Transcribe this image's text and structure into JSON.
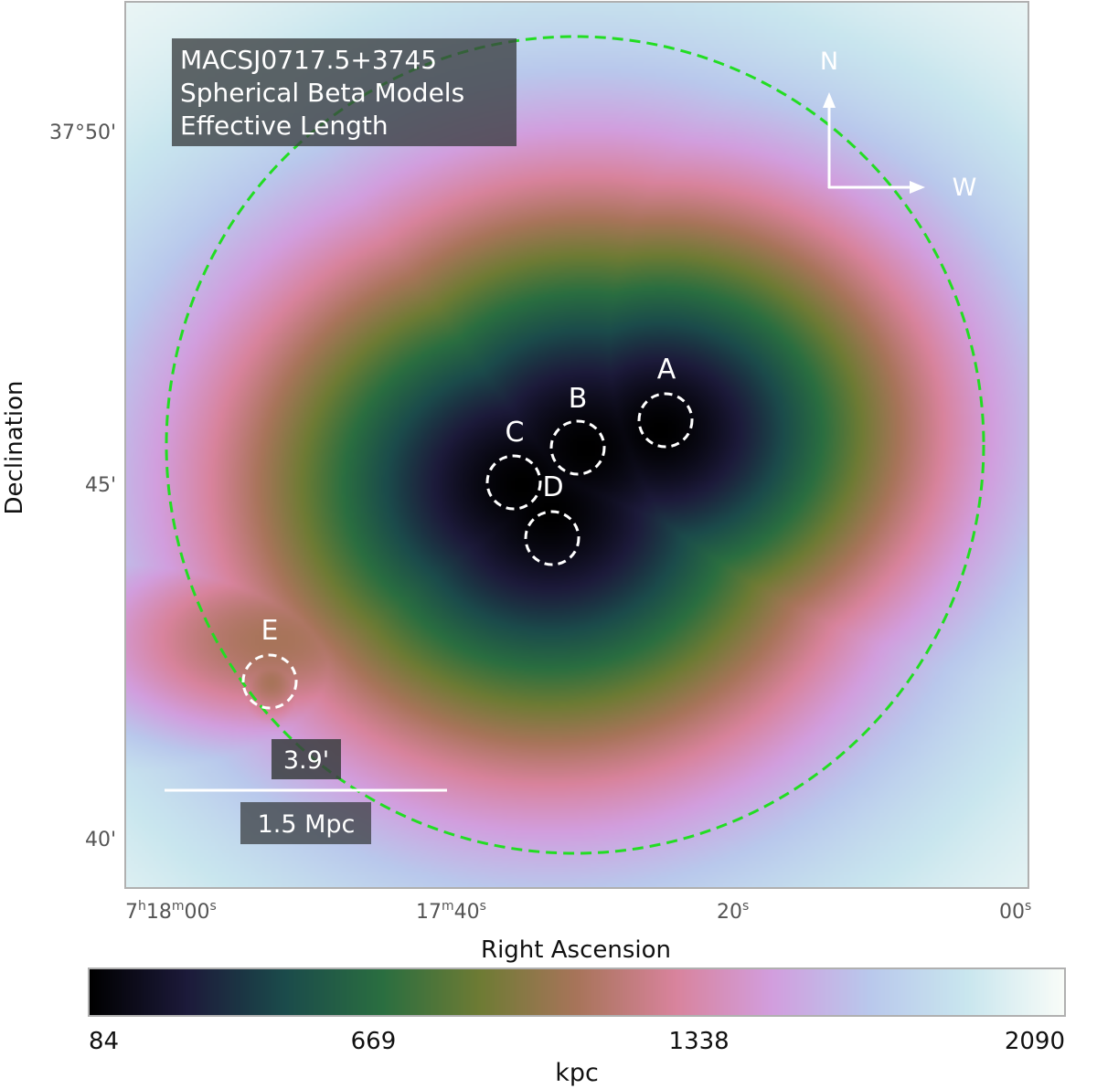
{
  "chart_data": {
    "type": "heatmap",
    "title_lines": [
      "MACSJ0717.5+3745",
      "Spherical Beta Models",
      "Effective Length"
    ],
    "xlabel": "Right Ascension",
    "ylabel": "Declination",
    "x_ticks": [
      {
        "base": "7",
        "sup1": "h",
        "mid": "18",
        "sup2": "m",
        "tail": "00",
        "sup3": "s"
      },
      {
        "base": "",
        "sup1": "",
        "mid": "17",
        "sup2": "m",
        "tail": "40",
        "sup3": "s"
      },
      {
        "base": "",
        "sup1": "",
        "mid": "",
        "sup2": "",
        "tail": "20",
        "sup3": "s"
      },
      {
        "base": "",
        "sup1": "",
        "mid": "",
        "sup2": "",
        "tail": "00",
        "sup3": "s"
      }
    ],
    "y_ticks": [
      "37°50'",
      "45'",
      "40'"
    ],
    "colorbar": {
      "label": "kpc",
      "min": 84,
      "max": 2090,
      "ticks": [
        "84",
        "669",
        "1338",
        "2090"
      ],
      "tick_values": [
        84,
        669,
        1338,
        2090
      ]
    },
    "compass": {
      "north": "N",
      "west": "W"
    },
    "scale_bar": {
      "angular": "3.9'",
      "physical": "1.5 Mpc"
    },
    "subclusters": [
      {
        "label": "A"
      },
      {
        "label": "B"
      },
      {
        "label": "C"
      },
      {
        "label": "D"
      },
      {
        "label": "E"
      }
    ],
    "colors": {
      "colormap": [
        "#000000",
        "#1c1a3a",
        "#1b4b4b",
        "#2a6e40",
        "#6e7b34",
        "#a8745a",
        "#d8839c",
        "#d29ede",
        "#b9c8ec",
        "#c9e6ee",
        "#f9fcf8"
      ],
      "dashed_circle": "#22dd22",
      "markers": "#ffffff"
    }
  }
}
